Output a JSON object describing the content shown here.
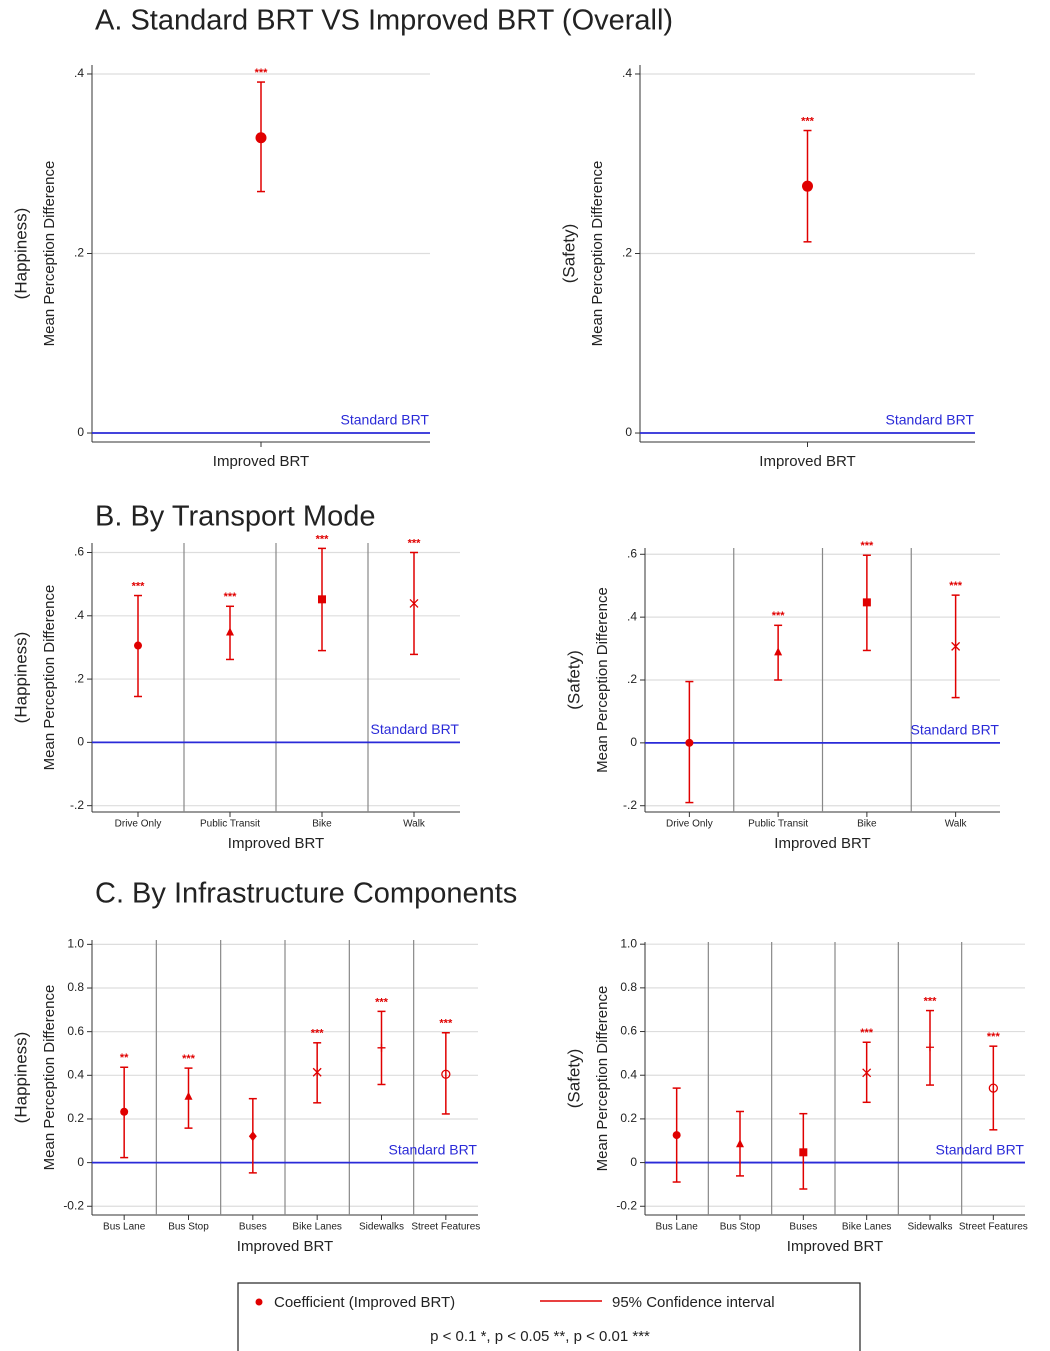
{
  "legend": {
    "entries": [
      "Coefficient (Improved BRT)",
      "95% Confidence interval"
    ],
    "note": "p < 0.1 *, p < 0.05 **, p < 0.01 ***",
    "color": "#e00000"
  },
  "chart_data": [
    {
      "type": "errorbar",
      "title": "A. Standard BRT VS  Improved BRT (Overall)",
      "ylabel_group": "(Happiness)",
      "ylabel": "Mean Perception Difference",
      "categories": [
        "Improved BRT"
      ],
      "values": [
        0.329
      ],
      "lower": [
        0.269
      ],
      "upper": [
        0.391
      ],
      "significance": [
        "***"
      ],
      "markers": [
        "circle"
      ],
      "color": "#e00000",
      "baseline": {
        "value": 0,
        "label": "Standard BRT",
        "color": "#2a2ad8"
      },
      "ylim": [
        -0.01,
        0.41
      ],
      "yticks": [
        0,
        {
          "value": 0.2,
          "label": ".2"
        },
        {
          "value": 0.4,
          "label": ".4"
        }
      ],
      "grid": true,
      "separators": false
    },
    {
      "type": "errorbar",
      "ylabel_group": "(Safety)",
      "ylabel": "Mean Perception Difference",
      "categories": [
        "Improved BRT"
      ],
      "values": [
        0.275
      ],
      "lower": [
        0.213
      ],
      "upper": [
        0.337
      ],
      "significance": [
        "***"
      ],
      "markers": [
        "circle"
      ],
      "color": "#e00000",
      "baseline": {
        "value": 0,
        "label": "Standard BRT",
        "color": "#2a2ad8"
      },
      "ylim": [
        -0.01,
        0.41
      ],
      "yticks": [
        0,
        {
          "value": 0.2,
          "label": ".2"
        },
        {
          "value": 0.4,
          "label": ".4"
        }
      ],
      "grid": true,
      "separators": false
    },
    {
      "type": "errorbar",
      "title": "B. By Transport Mode",
      "ylabel_group": "(Happiness)",
      "ylabel": "Mean Perception Difference",
      "xlabel": "Improved BRT",
      "categories": [
        "Drive Only",
        "Public Transit",
        "Bike",
        "Walk"
      ],
      "values": [
        0.306,
        0.347,
        0.452,
        0.439
      ],
      "lower": [
        0.145,
        0.262,
        0.29,
        0.278
      ],
      "upper": [
        0.464,
        0.43,
        0.613,
        0.6
      ],
      "significance": [
        "***",
        "***",
        "***",
        "***"
      ],
      "markers": [
        "circle",
        "triangle",
        "square",
        "x"
      ],
      "color": "#e00000",
      "baseline": {
        "value": 0,
        "label": "Standard BRT",
        "color": "#2a2ad8"
      },
      "ylim": [
        -0.22,
        0.63
      ],
      "yticks": [
        {
          "value": -0.2,
          "label": "-.2"
        },
        0,
        {
          "value": 0.2,
          "label": ".2"
        },
        {
          "value": 0.4,
          "label": ".4"
        },
        {
          "value": 0.6,
          "label": ".6"
        }
      ],
      "grid": true,
      "separators": true
    },
    {
      "type": "errorbar",
      "ylabel_group": "(Safety)",
      "ylabel": "Mean Perception Difference",
      "xlabel": "Improved BRT",
      "categories": [
        "Drive Only",
        "Public Transit",
        "Bike",
        "Walk"
      ],
      "values": [
        0.0,
        0.288,
        0.447,
        0.307
      ],
      "lower": [
        -0.19,
        0.2,
        0.294,
        0.144
      ],
      "upper": [
        0.195,
        0.374,
        0.597,
        0.47
      ],
      "significance": [
        null,
        "***",
        "***",
        "***"
      ],
      "markers": [
        "circle",
        "triangle",
        "square",
        "x"
      ],
      "color": "#e00000",
      "baseline": {
        "value": 0,
        "label": "Standard BRT",
        "color": "#2a2ad8"
      },
      "ylim": [
        -0.22,
        0.62
      ],
      "yticks": [
        {
          "value": -0.2,
          "label": "-.2"
        },
        0,
        {
          "value": 0.2,
          "label": ".2"
        },
        {
          "value": 0.4,
          "label": ".4"
        },
        {
          "value": 0.6,
          "label": ".6"
        }
      ],
      "grid": true,
      "separators": true
    },
    {
      "type": "errorbar",
      "title": "C. By Infrastructure  Components",
      "ylabel_group": "(Happiness)",
      "ylabel": "Mean Perception Difference",
      "xlabel": "Improved BRT",
      "categories": [
        "Bus Lane",
        "Bus Stop",
        "Buses",
        "Bike Lanes",
        "Sidewalks",
        "Street Features"
      ],
      "values": [
        0.233,
        0.302,
        0.121,
        0.414,
        0.526,
        0.405
      ],
      "lower": [
        0.023,
        0.158,
        -0.047,
        0.274,
        0.358,
        0.223
      ],
      "upper": [
        0.437,
        0.433,
        0.293,
        0.549,
        0.693,
        0.595
      ],
      "significance": [
        "**",
        "***",
        null,
        "***",
        "***",
        "***"
      ],
      "markers": [
        "circle",
        "triangle",
        "diamond",
        "x",
        "plus",
        "hollow-circle"
      ],
      "color": "#e00000",
      "baseline": {
        "value": 0,
        "label": "Standard BRT",
        "color": "#2a2ad8"
      },
      "ylim": [
        -0.24,
        1.02
      ],
      "yticks": [
        -0.2,
        0,
        0.2,
        0.4,
        0.6,
        0.8,
        {
          "value": 1,
          "label": "1.0"
        }
      ],
      "grid": true,
      "separators": true
    },
    {
      "type": "errorbar",
      "ylabel_group": "(Safety)",
      "ylabel": "Mean Perception Difference",
      "xlabel": "Improved BRT",
      "categories": [
        "Bus Lane",
        "Bus Stop",
        "Buses",
        "Bike Lanes",
        "Sidewalks",
        "Street Features"
      ],
      "values": [
        0.126,
        0.084,
        0.047,
        0.411,
        0.528,
        0.341
      ],
      "lower": [
        -0.089,
        -0.061,
        -0.121,
        0.276,
        0.355,
        0.15
      ],
      "upper": [
        0.341,
        0.234,
        0.224,
        0.551,
        0.696,
        0.533
      ],
      "significance": [
        null,
        null,
        null,
        "***",
        "***",
        "***"
      ],
      "markers": [
        "circle",
        "triangle",
        "square",
        "x",
        "plus",
        "hollow-circle"
      ],
      "color": "#e00000",
      "baseline": {
        "value": 0,
        "label": "Standard BRT",
        "color": "#2a2ad8"
      },
      "ylim": [
        -0.24,
        1.01
      ],
      "yticks": [
        -0.2,
        0,
        0.2,
        0.4,
        0.6,
        0.8,
        {
          "value": 1,
          "label": "1.0"
        }
      ],
      "grid": true,
      "separators": true
    }
  ]
}
